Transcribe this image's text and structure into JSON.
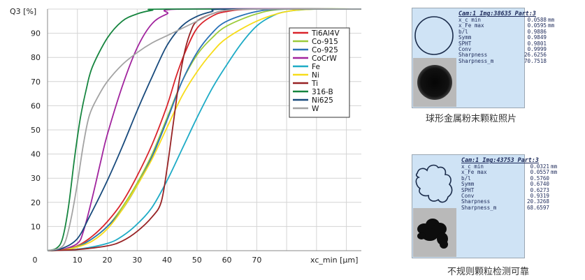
{
  "chart_data": {
    "type": "line",
    "ylabel": "Q3 [%]",
    "xlabel": "xc_min [µm]",
    "x_range": [
      0,
      105
    ],
    "y_range": [
      0,
      100
    ],
    "x_ticks": [
      0,
      10,
      20,
      30,
      40,
      50,
      60,
      70
    ],
    "y_ticks": [
      10,
      20,
      30,
      40,
      50,
      60,
      70,
      80,
      90
    ],
    "grid": true,
    "legend_position": "top-right",
    "series": [
      {
        "name": "Ti6Al4V",
        "color": "#d9232b",
        "values": [
          [
            0,
            0
          ],
          [
            5,
            0.5
          ],
          [
            10,
            2
          ],
          [
            15,
            6
          ],
          [
            20,
            12
          ],
          [
            25,
            20
          ],
          [
            30,
            31
          ],
          [
            35,
            44
          ],
          [
            40,
            60
          ],
          [
            43,
            72
          ],
          [
            46,
            82
          ],
          [
            50,
            92
          ],
          [
            55,
            97
          ],
          [
            60,
            99
          ],
          [
            70,
            100
          ],
          [
            105,
            100
          ]
        ]
      },
      {
        "name": "Co-915",
        "color": "#9ccb3b",
        "values": [
          [
            0,
            0
          ],
          [
            5,
            0.4
          ],
          [
            10,
            1.8
          ],
          [
            15,
            5
          ],
          [
            20,
            10
          ],
          [
            25,
            18
          ],
          [
            30,
            28
          ],
          [
            35,
            40
          ],
          [
            40,
            55
          ],
          [
            45,
            70
          ],
          [
            50,
            81
          ],
          [
            55,
            88
          ],
          [
            60,
            93
          ],
          [
            70,
            98
          ],
          [
            80,
            100
          ],
          [
            105,
            100
          ]
        ]
      },
      {
        "name": "Co-925",
        "color": "#2a72b8",
        "values": [
          [
            0,
            0
          ],
          [
            5,
            0.4
          ],
          [
            10,
            1.6
          ],
          [
            15,
            5
          ],
          [
            20,
            10
          ],
          [
            25,
            17
          ],
          [
            30,
            27
          ],
          [
            35,
            39
          ],
          [
            40,
            54
          ],
          [
            45,
            70
          ],
          [
            50,
            82
          ],
          [
            55,
            90
          ],
          [
            60,
            95
          ],
          [
            70,
            99
          ],
          [
            80,
            100
          ],
          [
            105,
            100
          ]
        ]
      },
      {
        "name": "CoCrW",
        "color": "#a1249e",
        "values": [
          [
            0,
            0
          ],
          [
            5,
            0.5
          ],
          [
            10,
            3
          ],
          [
            12,
            8
          ],
          [
            15,
            22
          ],
          [
            18,
            38
          ],
          [
            20,
            48
          ],
          [
            25,
            68
          ],
          [
            30,
            84
          ],
          [
            35,
            94
          ],
          [
            40,
            98
          ],
          [
            45,
            100
          ],
          [
            105,
            100
          ]
        ]
      },
      {
        "name": "Fe",
        "color": "#1eabc6",
        "values": [
          [
            0,
            0
          ],
          [
            10,
            0.6
          ],
          [
            20,
            3
          ],
          [
            25,
            6
          ],
          [
            30,
            11
          ],
          [
            35,
            18
          ],
          [
            40,
            29
          ],
          [
            45,
            42
          ],
          [
            50,
            55
          ],
          [
            55,
            67
          ],
          [
            60,
            77
          ],
          [
            65,
            86
          ],
          [
            70,
            93
          ],
          [
            75,
            97
          ],
          [
            80,
            99
          ],
          [
            90,
            100
          ],
          [
            105,
            100
          ]
        ]
      },
      {
        "name": "Ni",
        "color": "#f7dc1a",
        "values": [
          [
            0,
            0
          ],
          [
            5,
            0.3
          ],
          [
            10,
            1.5
          ],
          [
            15,
            4
          ],
          [
            20,
            9
          ],
          [
            25,
            17
          ],
          [
            30,
            27
          ],
          [
            35,
            38
          ],
          [
            40,
            51
          ],
          [
            45,
            64
          ],
          [
            50,
            74
          ],
          [
            55,
            82
          ],
          [
            60,
            88
          ],
          [
            70,
            95
          ],
          [
            80,
            99
          ],
          [
            90,
            100
          ],
          [
            105,
            100
          ]
        ]
      },
      {
        "name": "Ti",
        "color": "#972224",
        "values": [
          [
            0,
            0
          ],
          [
            10,
            0.5
          ],
          [
            20,
            2
          ],
          [
            25,
            4
          ],
          [
            30,
            8
          ],
          [
            35,
            14
          ],
          [
            38,
            20
          ],
          [
            40,
            34
          ],
          [
            42,
            52
          ],
          [
            44,
            70
          ],
          [
            46,
            83
          ],
          [
            48,
            91
          ],
          [
            50,
            95
          ],
          [
            55,
            98
          ],
          [
            60,
            99.5
          ],
          [
            70,
            100
          ],
          [
            105,
            100
          ]
        ]
      },
      {
        "name": "316-B",
        "color": "#16853f",
        "values": [
          [
            0,
            0
          ],
          [
            3,
            1
          ],
          [
            5,
            5
          ],
          [
            7,
            18
          ],
          [
            9,
            38
          ],
          [
            11,
            55
          ],
          [
            13,
            67
          ],
          [
            15,
            76
          ],
          [
            20,
            88
          ],
          [
            25,
            95
          ],
          [
            30,
            98
          ],
          [
            35,
            99.5
          ],
          [
            40,
            100
          ],
          [
            105,
            100
          ]
        ]
      },
      {
        "name": "Ni625",
        "color": "#184a7c",
        "values": [
          [
            0,
            0
          ],
          [
            5,
            1
          ],
          [
            10,
            5
          ],
          [
            14,
            14
          ],
          [
            20,
            29
          ],
          [
            25,
            43
          ],
          [
            30,
            58
          ],
          [
            35,
            72
          ],
          [
            40,
            85
          ],
          [
            45,
            93
          ],
          [
            50,
            97
          ],
          [
            55,
            99
          ],
          [
            60,
            100
          ],
          [
            105,
            100
          ]
        ]
      },
      {
        "name": "W",
        "color": "#a3a3a3",
        "values": [
          [
            0,
            0
          ],
          [
            4,
            1
          ],
          [
            6,
            4
          ],
          [
            8,
            14
          ],
          [
            10,
            28
          ],
          [
            12,
            44
          ],
          [
            14,
            56
          ],
          [
            17,
            64
          ],
          [
            20,
            70
          ],
          [
            25,
            77
          ],
          [
            30,
            82
          ],
          [
            35,
            86
          ],
          [
            40,
            89
          ],
          [
            45,
            92
          ],
          [
            50,
            95
          ],
          [
            55,
            98
          ],
          [
            60,
            99.5
          ],
          [
            70,
            100
          ],
          [
            105,
            100
          ]
        ]
      }
    ]
  },
  "panels": [
    {
      "header": "Cam:1 Img:38635 Part:3",
      "stats": [
        {
          "label": "x_c min",
          "value": "0.0588",
          "unit": "mm"
        },
        {
          "label": "x_Fe max",
          "value": "0.0595",
          "unit": "mm"
        },
        {
          "label": "b/l",
          "value": "0.9886",
          "unit": ""
        },
        {
          "label": "Symm",
          "value": "0.9849",
          "unit": ""
        },
        {
          "label": "SPHT",
          "value": "0.9801",
          "unit": ""
        },
        {
          "label": "Conv",
          "value": "0.9999",
          "unit": ""
        },
        {
          "label": "Sharpness",
          "value": "26.6256",
          "unit": ""
        },
        {
          "label": "Sharpness_m",
          "value": "70.7518",
          "unit": ""
        }
      ],
      "caption": "球形金属粉末颗粒照片"
    },
    {
      "header": "Cam:1 Img:43753 Part:3",
      "stats": [
        {
          "label": "x_c min",
          "value": "0.0321",
          "unit": "mm"
        },
        {
          "label": "x_Fe max",
          "value": "0.0557",
          "unit": "mm"
        },
        {
          "label": "b/l",
          "value": "0.5760",
          "unit": ""
        },
        {
          "label": "Symm",
          "value": "0.6740",
          "unit": ""
        },
        {
          "label": "SPHT",
          "value": "0.6273",
          "unit": ""
        },
        {
          "label": "Conv",
          "value": "0.9319",
          "unit": ""
        },
        {
          "label": "Sharpness",
          "value": "20.3268",
          "unit": ""
        },
        {
          "label": "Sharpness_m",
          "value": "68.6597",
          "unit": ""
        }
      ],
      "caption": "不规则颗粒检测可靠"
    }
  ]
}
